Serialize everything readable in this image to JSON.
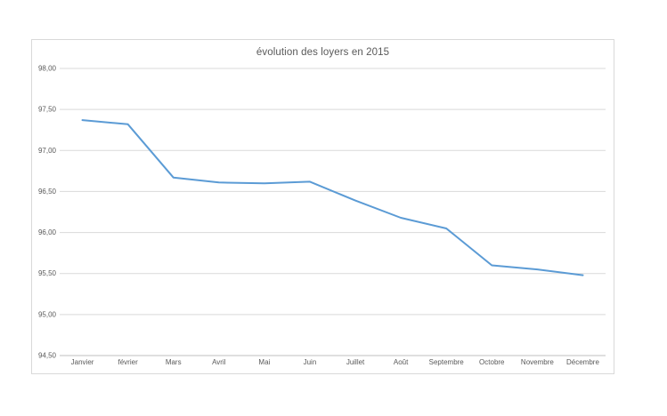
{
  "chart_data": {
    "type": "line",
    "title": "évolution des loyers en 2015",
    "categories": [
      "Janvier",
      "février",
      "Mars",
      "Avril",
      "Mai",
      "Juin",
      "Juillet",
      "Août",
      "Septembre",
      "Octobre",
      "Novembre",
      "Décembre"
    ],
    "values": [
      97.37,
      97.32,
      96.67,
      96.61,
      96.6,
      96.62,
      96.39,
      96.18,
      96.05,
      95.6,
      95.55,
      95.48
    ],
    "xlabel": "",
    "ylabel": "",
    "ylim": [
      94.5,
      98.0
    ],
    "y_ticks": [
      {
        "label": "98,00",
        "value": 98.0
      },
      {
        "label": "97,50",
        "value": 97.5
      },
      {
        "label": "97,00",
        "value": 97.0
      },
      {
        "label": "96,50",
        "value": 96.5
      },
      {
        "label": "96,00",
        "value": 96.0
      },
      {
        "label": "95,50",
        "value": 95.5
      },
      {
        "label": "95,00",
        "value": 95.0
      },
      {
        "label": "94,50",
        "value": 94.5
      }
    ],
    "grid": true,
    "legend": false,
    "colors": {
      "line": "#5B9BD5",
      "grid": "#D9D9D9",
      "axis": "#BFBFBF",
      "text": "#595959",
      "border": "#D9D9D9",
      "background": "#FFFFFF"
    }
  }
}
